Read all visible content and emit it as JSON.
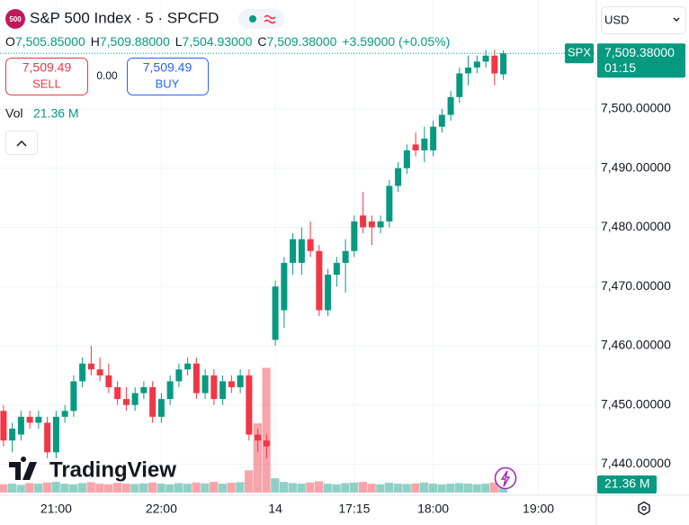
{
  "header": {
    "logo": "500",
    "title": "S&P 500 Index · 5 · SPCFD",
    "ohlc": [
      {
        "key": "O",
        "value": "7,505.85000"
      },
      {
        "key": "H",
        "value": "7,509.88000"
      },
      {
        "key": "L",
        "value": "7,504.93000"
      },
      {
        "key": "C",
        "value": "7,509.38000"
      }
    ],
    "change": "+3.59000 (+0.05%)",
    "sell": {
      "price": "7,509.49",
      "label": "SELL"
    },
    "spread": "0.00",
    "buy": {
      "price": "7,509.49",
      "label": "BUY"
    },
    "volume": {
      "label": "Vol",
      "value": "21.36 M"
    },
    "currency": "USD"
  },
  "watermark": "TradingView",
  "chart_data": {
    "type": "candlestick",
    "up_color": "#089981",
    "down_color": "#f23645",
    "grid": true,
    "open": [
      7449,
      7444,
      7445,
      7448,
      7447,
      7447,
      7442,
      7448,
      7449,
      7454,
      7457,
      7456,
      7455,
      7453,
      7451,
      7450,
      7452,
      7453,
      7448,
      7451,
      7454,
      7456,
      7457,
      7452,
      7455,
      7451,
      7454,
      7453,
      7455,
      7445,
      7444,
      7461,
      7466,
      7474,
      7474,
      7478,
      7476,
      7466,
      7472,
      7474,
      7476,
      7482,
      7481,
      7480,
      7481,
      7487,
      7490,
      7494,
      7493,
      7493,
      7497,
      7499,
      7502,
      7506,
      7507,
      7508,
      7509,
      7505.85
    ],
    "high": [
      7450,
      7447,
      7449,
      7449,
      7449,
      7448,
      7449,
      7450,
      7455,
      7458,
      7460,
      7458,
      7457,
      7454,
      7453,
      7453,
      7454,
      7454,
      7452,
      7455,
      7457,
      7458,
      7458,
      7456,
      7456,
      7455,
      7455,
      7456,
      7456,
      7446,
      7445,
      7471,
      7475,
      7479,
      7480,
      7481,
      7477,
      7473,
      7475,
      7478,
      7482,
      7486,
      7482,
      7482,
      7488,
      7491,
      7494,
      7496,
      7497,
      7498,
      7500,
      7503,
      7507,
      7509,
      7509,
      7510,
      7510,
      7509.88
    ],
    "low": [
      7443,
      7442,
      7444,
      7446,
      7446,
      7441,
      7441,
      7447,
      7448,
      7453,
      7455,
      7454,
      7452,
      7450,
      7449,
      7449,
      7451,
      7447,
      7447,
      7450,
      7453,
      7455,
      7451,
      7451,
      7450,
      7450,
      7452,
      7452,
      7444,
      7442,
      7441,
      7460,
      7463,
      7472,
      7472,
      7475,
      7465,
      7465,
      7470,
      7469,
      7475,
      7479,
      7477,
      7479,
      7480,
      7486,
      7489,
      7492,
      7491,
      7492,
      7496,
      7498,
      7501,
      7504,
      7506,
      7507,
      7504,
      7504.93
    ],
    "close": [
      7444,
      7446,
      7448,
      7447,
      7448,
      7442,
      7448,
      7449,
      7454,
      7457,
      7456,
      7455,
      7453,
      7451,
      7450,
      7452,
      7453,
      7448,
      7451,
      7454,
      7456,
      7457,
      7452,
      7455,
      7451,
      7454,
      7453,
      7455,
      7445,
      7444,
      7443,
      7470,
      7474,
      7478,
      7478,
      7476,
      7466,
      7472,
      7474,
      7476,
      7481,
      7480,
      7480,
      7481,
      7487,
      7490,
      7493,
      7493,
      7495,
      7497,
      7499,
      7502,
      7506,
      7507,
      7508,
      7509,
      7506,
      7509.38
    ],
    "volume": [
      28,
      30,
      26,
      32,
      30,
      34,
      36,
      30,
      28,
      32,
      35,
      30,
      28,
      33,
      30,
      29,
      31,
      34,
      30,
      28,
      32,
      30,
      34,
      31,
      36,
      30,
      33,
      35,
      75,
      233,
      420,
      48,
      36,
      32,
      30,
      34,
      38,
      30,
      28,
      32,
      34,
      36,
      30,
      28,
      33,
      30,
      29,
      31,
      34,
      30,
      28,
      30,
      32,
      30,
      28,
      30,
      34,
      21.36
    ],
    "xlim": [
      -0.4,
      67.3
    ],
    "xticks": [
      {
        "value": 6,
        "label": "21:00"
      },
      {
        "value": 18,
        "label": "22:00"
      },
      {
        "value": 31,
        "label": "14"
      },
      {
        "value": 40,
        "label": "17:15"
      },
      {
        "value": 49,
        "label": "18:00"
      },
      {
        "value": 61,
        "label": "19:00"
      }
    ],
    "ylim": [
      7435.2,
      7518.4
    ],
    "yticks": [
      {
        "value": 7440,
        "label": "7,440.00000"
      },
      {
        "value": 7450,
        "label": "7,450.00000"
      },
      {
        "value": 7460,
        "label": "7,460.00000"
      },
      {
        "value": 7470,
        "label": "7,470.00000"
      },
      {
        "value": 7480,
        "label": "7,480.00000"
      },
      {
        "value": 7490,
        "label": "7,490.00000"
      },
      {
        "value": 7500,
        "label": "7,500.00000"
      }
    ],
    "volume_lim": [
      0,
      1658
    ],
    "last_price": {
      "value": 7509.38,
      "label": "7,509.38000",
      "countdown": "01:15",
      "symbol": "SPX"
    },
    "last_volume": {
      "value": 21.36,
      "label": "21.36 M"
    }
  }
}
